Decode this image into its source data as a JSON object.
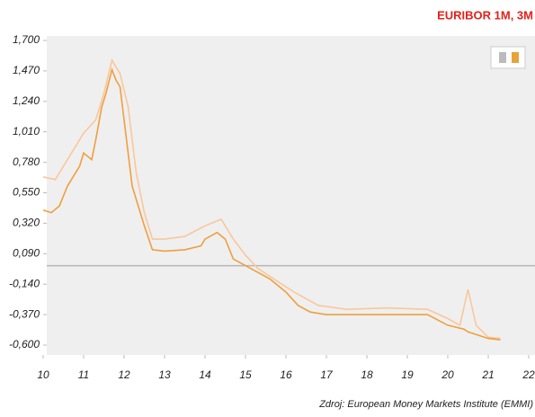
{
  "chart_data": {
    "type": "line",
    "title": "EURIBOR 1M, 3M",
    "source": "Zdroj: European Money Markets Institute (EMMI)",
    "xlim": [
      10,
      22
    ],
    "xticks": [
      10,
      11,
      12,
      13,
      14,
      15,
      16,
      17,
      18,
      19,
      20,
      21,
      22
    ],
    "ylim": [
      -0.6,
      1.7
    ],
    "yticks": [
      {
        "value": 1.7,
        "label": "1,700"
      },
      {
        "value": 1.47,
        "label": "1,470"
      },
      {
        "value": 1.24,
        "label": "1,240"
      },
      {
        "value": 1.01,
        "label": "1,010"
      },
      {
        "value": 0.78,
        "label": "0,780"
      },
      {
        "value": 0.55,
        "label": "0,550"
      },
      {
        "value": 0.32,
        "label": "0,320"
      },
      {
        "value": 0.09,
        "label": "0,090"
      },
      {
        "value": -0.14,
        "label": "-0,140"
      },
      {
        "value": -0.37,
        "label": "-0,370"
      },
      {
        "value": -0.6,
        "label": "-0,600"
      }
    ],
    "series": [
      {
        "name": "3M",
        "color": "#f9c79c",
        "x": [
          10.0,
          10.3,
          10.5,
          10.8,
          11.0,
          11.3,
          11.5,
          11.7,
          11.9,
          12.1,
          12.3,
          12.5,
          12.7,
          13.0,
          13.5,
          14.0,
          14.4,
          14.7,
          15.0,
          15.3,
          15.7,
          16.2,
          16.8,
          17.5,
          18.5,
          19.5,
          20.0,
          20.3,
          20.5,
          20.7,
          21.0,
          21.3
        ],
        "values": [
          0.67,
          0.65,
          0.75,
          0.9,
          1.0,
          1.1,
          1.3,
          1.55,
          1.45,
          1.2,
          0.7,
          0.4,
          0.2,
          0.2,
          0.22,
          0.3,
          0.35,
          0.2,
          0.08,
          -0.02,
          -0.1,
          -0.2,
          -0.3,
          -0.33,
          -0.32,
          -0.33,
          -0.4,
          -0.45,
          -0.18,
          -0.45,
          -0.54,
          -0.55
        ]
      },
      {
        "name": "1M",
        "color": "#ef9f3f",
        "x": [
          10.0,
          10.2,
          10.4,
          10.6,
          10.9,
          11.0,
          11.2,
          11.3,
          11.45,
          11.55,
          11.7,
          11.8,
          11.9,
          12.0,
          12.2,
          12.4,
          12.5,
          12.7,
          13.0,
          13.5,
          13.9,
          14.0,
          14.3,
          14.5,
          14.7,
          15.0,
          15.3,
          15.6,
          16.0,
          16.3,
          16.6,
          17.0,
          18.0,
          19.0,
          19.5,
          20.0,
          20.4,
          20.5,
          21.0,
          21.3
        ],
        "values": [
          0.42,
          0.4,
          0.45,
          0.6,
          0.75,
          0.85,
          0.8,
          0.95,
          1.2,
          1.3,
          1.48,
          1.4,
          1.35,
          1.1,
          0.6,
          0.4,
          0.3,
          0.12,
          0.11,
          0.12,
          0.15,
          0.2,
          0.25,
          0.2,
          0.05,
          0.0,
          -0.05,
          -0.1,
          -0.2,
          -0.3,
          -0.35,
          -0.37,
          -0.37,
          -0.37,
          -0.37,
          -0.45,
          -0.48,
          -0.5,
          -0.55,
          -0.56
        ]
      }
    ]
  }
}
